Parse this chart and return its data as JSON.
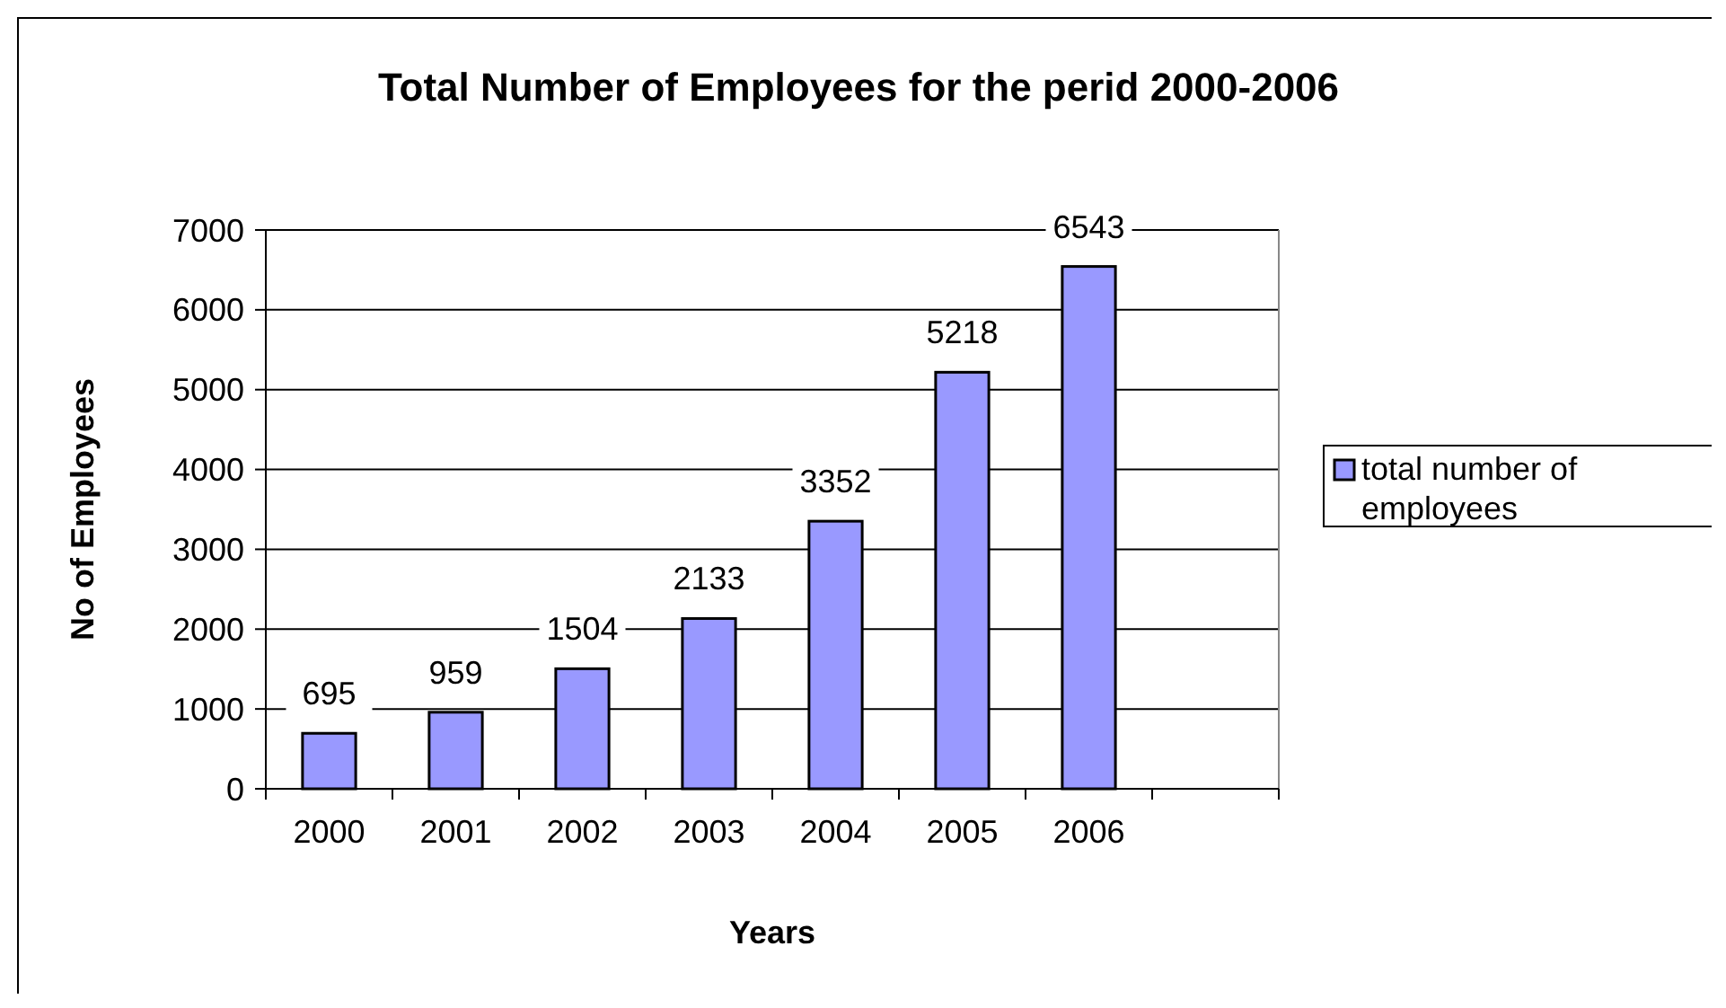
{
  "chart_data": {
    "type": "bar",
    "title": "Total Number of Employees for the perid 2000-2006",
    "xlabel": "Years",
    "ylabel": "No of Employees",
    "categories": [
      "2000",
      "2001",
      "2002",
      "2003",
      "2004",
      "2005",
      "2006",
      null
    ],
    "series": [
      {
        "name": "total number of employees",
        "color": "#9999ff",
        "values": [
          695,
          959,
          1504,
          2133,
          3352,
          5218,
          6543,
          null
        ]
      }
    ],
    "ylim": [
      0,
      7000
    ],
    "yticks": [
      0,
      1000,
      2000,
      3000,
      4000,
      5000,
      6000,
      7000
    ],
    "grid": "y",
    "legend": "right",
    "data_labels": true
  }
}
